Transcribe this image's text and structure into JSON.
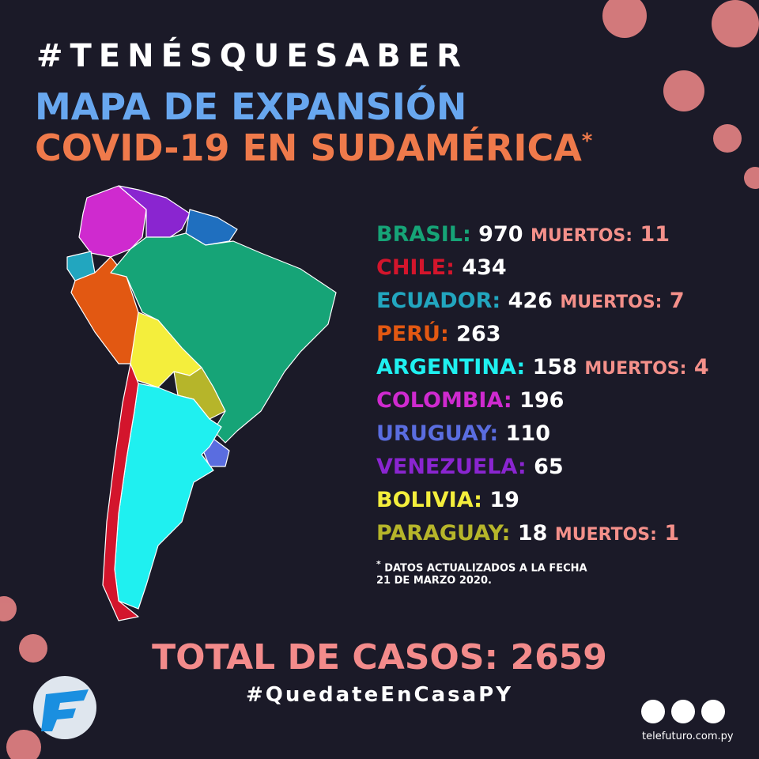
{
  "header": {
    "hashtag": "#TENÉSQUESABER",
    "title_line1": "MAPA DE EXPANSIÓN",
    "title_line2": "COVID-19 EN SUDAMÉRICA",
    "title_mark": "*"
  },
  "countries": [
    {
      "name": "BRASIL:",
      "cases": 970,
      "deaths_label": "MUERTOS:",
      "deaths": 11,
      "color": "#16a477"
    },
    {
      "name": "CHILE:",
      "cases": 434,
      "color": "#d3152c"
    },
    {
      "name": "ECUADOR:",
      "cases": 426,
      "deaths_label": "MUERTOS:",
      "deaths": 7,
      "color": "#22a6bf"
    },
    {
      "name": "PERÚ:",
      "cases": 263,
      "color": "#e25812"
    },
    {
      "name": "ARGENTINA:",
      "cases": 158,
      "deaths_label": "MUERTOS:",
      "deaths": 4,
      "color": "#1ff0f0"
    },
    {
      "name": "COLOMBIA:",
      "cases": 196,
      "color": "#cf2acf"
    },
    {
      "name": "URUGUAY:",
      "cases": 110,
      "color": "#5a6de0"
    },
    {
      "name": "VENEZUELA:",
      "cases": 65,
      "color": "#8a25d0"
    },
    {
      "name": "BOLIVIA:",
      "cases": 19,
      "color": "#f4ee3c"
    },
    {
      "name": "PARAGUAY:",
      "cases": 18,
      "deaths_label": "MUERTOS:",
      "deaths": 1,
      "color": "#b6b52a"
    }
  ],
  "deaths_color": "#f4908a",
  "footnote": {
    "mark": "*",
    "line1": "DATOS ACTUALIZADOS A LA FECHA",
    "line2": "21 DE MARZO 2020."
  },
  "total": {
    "label": "TOTAL DE CASOS:",
    "value": 2659
  },
  "footer": {
    "hashtag": "#QuedateEnCasaPY",
    "website": "telefuturo.com.py"
  }
}
